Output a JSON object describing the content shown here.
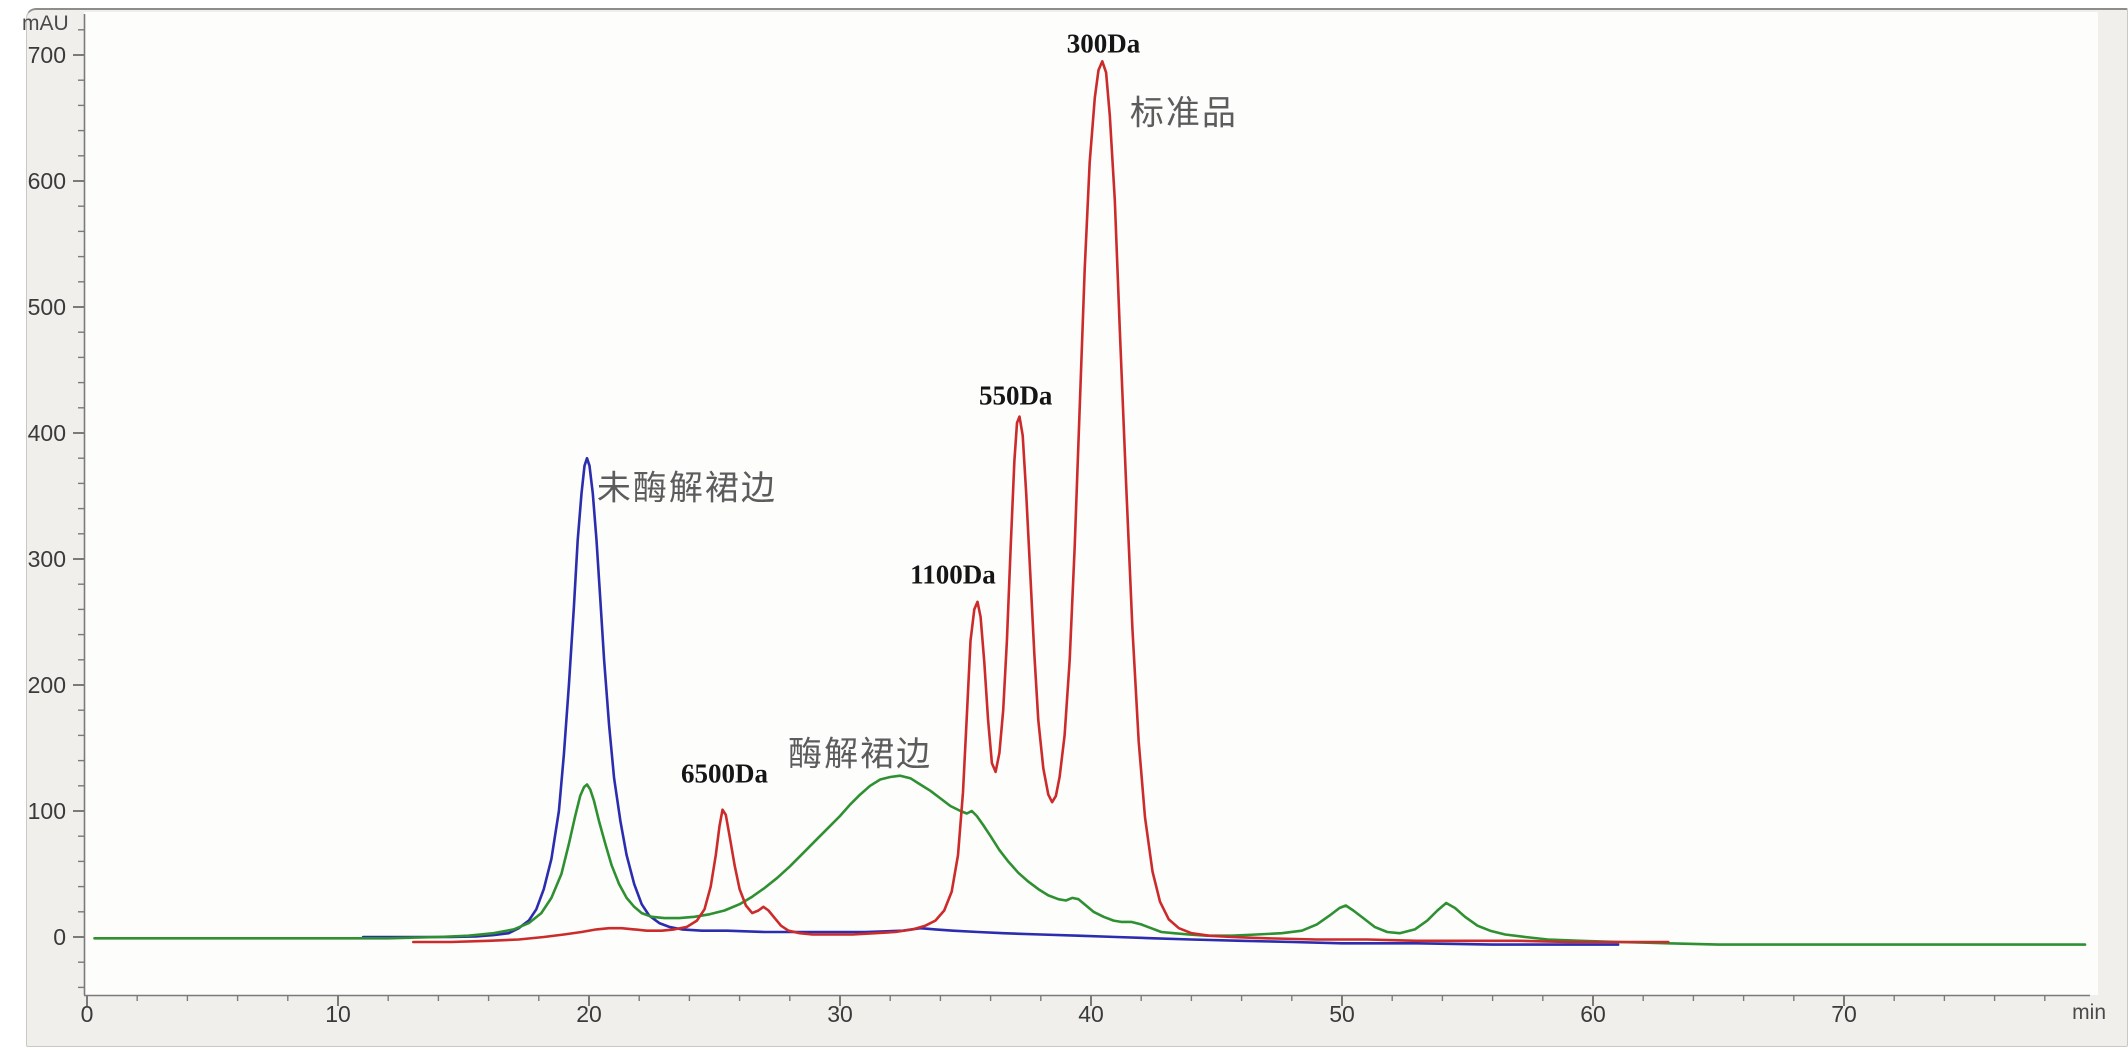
{
  "axes": {
    "x": {
      "unit": "min",
      "ticks": [
        0,
        10,
        20,
        30,
        40,
        50,
        60,
        70
      ],
      "minor_step": 2
    },
    "y": {
      "unit": "mAU",
      "ticks": [
        0,
        100,
        200,
        300,
        400,
        500,
        600,
        700
      ],
      "minor_step": 20
    }
  },
  "colors": {
    "blue_trace": "#2c2cae",
    "green_trace": "#2f9032",
    "red_trace": "#cc2b2b",
    "axis": "#7a7a7a",
    "tick_text": "#3a3a3a",
    "plot_bg": "#fdfdfc",
    "panel_bg": "#f0efec"
  },
  "chart_data": {
    "type": "line",
    "title": "",
    "xlabel": "min",
    "ylabel": "mAU",
    "xlim": [
      0,
      79.8
    ],
    "ylim": [
      -46,
      734
    ],
    "grid": false,
    "legend": "none",
    "series": [
      {
        "id": "non-enzymolyzed",
        "name": "未酶解裙边",
        "color": "#2c2cae",
        "peak_summary": {
          "t": 19.9,
          "v": 380
        },
        "points": [
          [
            11,
            0
          ],
          [
            13,
            0
          ],
          [
            14.5,
            0
          ],
          [
            15.5,
            0.5
          ],
          [
            16.2,
            1.5
          ],
          [
            16.8,
            3
          ],
          [
            17.2,
            7
          ],
          [
            17.6,
            13
          ],
          [
            17.9,
            22
          ],
          [
            18.2,
            38
          ],
          [
            18.5,
            62
          ],
          [
            18.8,
            100
          ],
          [
            19.0,
            145
          ],
          [
            19.2,
            200
          ],
          [
            19.4,
            262
          ],
          [
            19.55,
            315
          ],
          [
            19.7,
            352
          ],
          [
            19.82,
            374
          ],
          [
            19.92,
            380
          ],
          [
            20.02,
            374
          ],
          [
            20.15,
            352
          ],
          [
            20.3,
            315
          ],
          [
            20.45,
            268
          ],
          [
            20.6,
            220
          ],
          [
            20.8,
            168
          ],
          [
            21.0,
            126
          ],
          [
            21.25,
            92
          ],
          [
            21.5,
            65
          ],
          [
            21.8,
            42
          ],
          [
            22.1,
            26
          ],
          [
            22.4,
            17
          ],
          [
            22.8,
            11
          ],
          [
            23.2,
            8
          ],
          [
            23.7,
            6
          ],
          [
            24.5,
            5
          ],
          [
            25.5,
            5
          ],
          [
            27,
            4
          ],
          [
            29,
            4
          ],
          [
            31,
            4
          ],
          [
            32.5,
            5
          ],
          [
            33.2,
            7
          ],
          [
            33.8,
            6
          ],
          [
            34.5,
            5
          ],
          [
            35.5,
            4
          ],
          [
            36.5,
            3
          ],
          [
            38,
            2
          ],
          [
            39.5,
            1
          ],
          [
            41,
            0
          ],
          [
            42.5,
            -1
          ],
          [
            44,
            -2
          ],
          [
            46,
            -3
          ],
          [
            48,
            -4
          ],
          [
            50,
            -5
          ],
          [
            53,
            -5
          ],
          [
            56,
            -6
          ],
          [
            58,
            -6
          ],
          [
            61,
            -6
          ]
        ]
      },
      {
        "id": "enzymolyzed",
        "name": "酶解裙边",
        "color": "#2f9032",
        "peak_summary": {
          "t": 32.0,
          "v": 128
        },
        "points": [
          [
            0.3,
            -1
          ],
          [
            3,
            -1
          ],
          [
            6,
            -1
          ],
          [
            9,
            -1
          ],
          [
            12,
            -1
          ],
          [
            14,
            0
          ],
          [
            15.2,
            1
          ],
          [
            16.2,
            3
          ],
          [
            17.0,
            6
          ],
          [
            17.6,
            11
          ],
          [
            18.1,
            19
          ],
          [
            18.5,
            31
          ],
          [
            18.9,
            50
          ],
          [
            19.2,
            74
          ],
          [
            19.45,
            96
          ],
          [
            19.65,
            112
          ],
          [
            19.8,
            119
          ],
          [
            19.92,
            121
          ],
          [
            20.05,
            117
          ],
          [
            20.2,
            108
          ],
          [
            20.4,
            92
          ],
          [
            20.65,
            74
          ],
          [
            20.9,
            57
          ],
          [
            21.2,
            42
          ],
          [
            21.5,
            31
          ],
          [
            21.8,
            24
          ],
          [
            22.1,
            19
          ],
          [
            22.5,
            16
          ],
          [
            23,
            15
          ],
          [
            23.6,
            15
          ],
          [
            24.2,
            16
          ],
          [
            24.8,
            18
          ],
          [
            25.4,
            21
          ],
          [
            26,
            26
          ],
          [
            26.5,
            32
          ],
          [
            27,
            39
          ],
          [
            27.5,
            47
          ],
          [
            28,
            56
          ],
          [
            28.5,
            66
          ],
          [
            29,
            76
          ],
          [
            29.5,
            86
          ],
          [
            30,
            96
          ],
          [
            30.4,
            105
          ],
          [
            30.8,
            113
          ],
          [
            31.2,
            120
          ],
          [
            31.6,
            125
          ],
          [
            32.0,
            127
          ],
          [
            32.4,
            128
          ],
          [
            32.8,
            126
          ],
          [
            33.2,
            121
          ],
          [
            33.6,
            116
          ],
          [
            34.0,
            110
          ],
          [
            34.4,
            104
          ],
          [
            34.8,
            100
          ],
          [
            35.05,
            98
          ],
          [
            35.25,
            100
          ],
          [
            35.45,
            96
          ],
          [
            35.7,
            89
          ],
          [
            36.0,
            80
          ],
          [
            36.35,
            69
          ],
          [
            36.7,
            60
          ],
          [
            37.1,
            51
          ],
          [
            37.5,
            44
          ],
          [
            37.9,
            38
          ],
          [
            38.3,
            33
          ],
          [
            38.7,
            30
          ],
          [
            39.0,
            29
          ],
          [
            39.25,
            31
          ],
          [
            39.5,
            30
          ],
          [
            39.8,
            25
          ],
          [
            40.1,
            20
          ],
          [
            40.5,
            16
          ],
          [
            40.9,
            13
          ],
          [
            41.2,
            12
          ],
          [
            41.6,
            12
          ],
          [
            42.0,
            10
          ],
          [
            42.4,
            7
          ],
          [
            42.8,
            4
          ],
          [
            43.3,
            3
          ],
          [
            43.9,
            2
          ],
          [
            44.6,
            1
          ],
          [
            45.6,
            1
          ],
          [
            46.6,
            2
          ],
          [
            47.6,
            3
          ],
          [
            48.4,
            5
          ],
          [
            49.0,
            10
          ],
          [
            49.5,
            17
          ],
          [
            49.9,
            23
          ],
          [
            50.15,
            25
          ],
          [
            50.45,
            21
          ],
          [
            50.85,
            15
          ],
          [
            51.3,
            8
          ],
          [
            51.8,
            4
          ],
          [
            52.3,
            3
          ],
          [
            52.9,
            6
          ],
          [
            53.4,
            13
          ],
          [
            53.8,
            21
          ],
          [
            54.15,
            27
          ],
          [
            54.5,
            23
          ],
          [
            54.9,
            16
          ],
          [
            55.4,
            9
          ],
          [
            55.9,
            5
          ],
          [
            56.5,
            2
          ],
          [
            57.3,
            0
          ],
          [
            58.2,
            -2
          ],
          [
            59.5,
            -3
          ],
          [
            61,
            -4
          ],
          [
            63,
            -5
          ],
          [
            65,
            -6
          ],
          [
            68,
            -6
          ],
          [
            72,
            -6
          ],
          [
            76,
            -6
          ],
          [
            79.6,
            -6
          ]
        ]
      },
      {
        "id": "standard",
        "name": "标准品",
        "color": "#cc2b2b",
        "peak_summary": {
          "t": 40.5,
          "v": 695
        },
        "points": [
          [
            13,
            -4
          ],
          [
            14.5,
            -4
          ],
          [
            16,
            -3
          ],
          [
            17.2,
            -2
          ],
          [
            18.2,
            0
          ],
          [
            19.0,
            2
          ],
          [
            19.7,
            4
          ],
          [
            20.3,
            6
          ],
          [
            20.8,
            7
          ],
          [
            21.3,
            7
          ],
          [
            21.8,
            6
          ],
          [
            22.3,
            5
          ],
          [
            22.9,
            5
          ],
          [
            23.4,
            6
          ],
          [
            23.9,
            8
          ],
          [
            24.3,
            13
          ],
          [
            24.6,
            22
          ],
          [
            24.85,
            40
          ],
          [
            25.05,
            65
          ],
          [
            25.2,
            88
          ],
          [
            25.32,
            101
          ],
          [
            25.45,
            97
          ],
          [
            25.6,
            80
          ],
          [
            25.8,
            57
          ],
          [
            26.0,
            38
          ],
          [
            26.25,
            25
          ],
          [
            26.5,
            19
          ],
          [
            26.75,
            21
          ],
          [
            26.95,
            24
          ],
          [
            27.15,
            21
          ],
          [
            27.4,
            15
          ],
          [
            27.65,
            9
          ],
          [
            27.95,
            5
          ],
          [
            28.4,
            3
          ],
          [
            28.9,
            2
          ],
          [
            29.6,
            2
          ],
          [
            30.5,
            2
          ],
          [
            31.4,
            3
          ],
          [
            32.2,
            4
          ],
          [
            32.9,
            6
          ],
          [
            33.4,
            9
          ],
          [
            33.8,
            13
          ],
          [
            34.15,
            21
          ],
          [
            34.45,
            36
          ],
          [
            34.7,
            65
          ],
          [
            34.9,
            115
          ],
          [
            35.05,
            175
          ],
          [
            35.2,
            235
          ],
          [
            35.35,
            260
          ],
          [
            35.48,
            266
          ],
          [
            35.6,
            254
          ],
          [
            35.75,
            218
          ],
          [
            35.9,
            172
          ],
          [
            36.05,
            138
          ],
          [
            36.2,
            131
          ],
          [
            36.35,
            146
          ],
          [
            36.5,
            180
          ],
          [
            36.65,
            235
          ],
          [
            36.8,
            310
          ],
          [
            36.95,
            378
          ],
          [
            37.05,
            408
          ],
          [
            37.15,
            413
          ],
          [
            37.28,
            398
          ],
          [
            37.42,
            352
          ],
          [
            37.58,
            288
          ],
          [
            37.74,
            225
          ],
          [
            37.9,
            172
          ],
          [
            38.1,
            134
          ],
          [
            38.3,
            113
          ],
          [
            38.45,
            107
          ],
          [
            38.6,
            112
          ],
          [
            38.75,
            127
          ],
          [
            38.95,
            160
          ],
          [
            39.15,
            220
          ],
          [
            39.35,
            310
          ],
          [
            39.55,
            420
          ],
          [
            39.75,
            530
          ],
          [
            39.95,
            615
          ],
          [
            40.15,
            666
          ],
          [
            40.3,
            688
          ],
          [
            40.45,
            695
          ],
          [
            40.6,
            686
          ],
          [
            40.75,
            652
          ],
          [
            40.95,
            585
          ],
          [
            41.15,
            480
          ],
          [
            41.4,
            360
          ],
          [
            41.65,
            245
          ],
          [
            41.9,
            155
          ],
          [
            42.15,
            95
          ],
          [
            42.45,
            52
          ],
          [
            42.75,
            28
          ],
          [
            43.1,
            14
          ],
          [
            43.5,
            7
          ],
          [
            44.0,
            3
          ],
          [
            44.7,
            1
          ],
          [
            45.6,
            0
          ],
          [
            47,
            -1
          ],
          [
            49,
            -2
          ],
          [
            51,
            -2
          ],
          [
            53,
            -3
          ],
          [
            55,
            -3
          ],
          [
            57,
            -3
          ],
          [
            59,
            -4
          ],
          [
            61,
            -4
          ],
          [
            63,
            -4
          ]
        ]
      }
    ],
    "annotations": [
      {
        "id": "peak-300",
        "text": "300Da",
        "t": 40.5,
        "v": 709,
        "kind": "peak"
      },
      {
        "id": "peak-550",
        "text": "550Da",
        "t": 37.0,
        "v": 429,
        "kind": "peak"
      },
      {
        "id": "peak-1100",
        "text": "1100Da",
        "t": 34.5,
        "v": 287,
        "kind": "peak"
      },
      {
        "id": "peak-6500",
        "text": "6500Da",
        "t": 25.4,
        "v": 129,
        "kind": "peak"
      },
      {
        "id": "standard-label",
        "text": "标准品",
        "t": 43.7,
        "v": 656,
        "kind": "cjk"
      },
      {
        "id": "non-enzymolyzed-label",
        "text": "未酶解裙边",
        "t": 23.9,
        "v": 359,
        "kind": "cjk"
      },
      {
        "id": "enzymolyzed-label",
        "text": "酶解裙边",
        "t": 30.8,
        "v": 148,
        "kind": "cjk"
      }
    ]
  }
}
